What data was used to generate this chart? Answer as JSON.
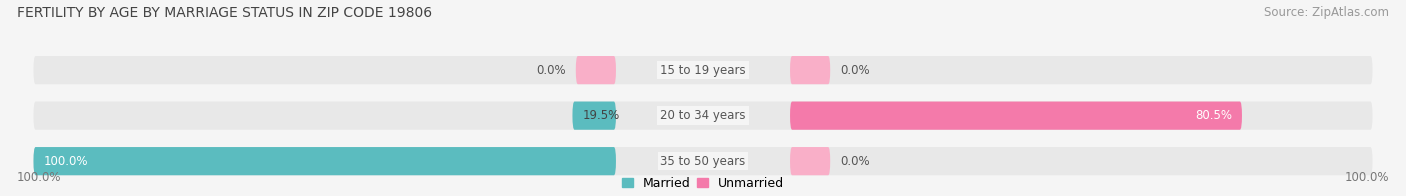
{
  "title": "FERTILITY BY AGE BY MARRIAGE STATUS IN ZIP CODE 19806",
  "source": "Source: ZipAtlas.com",
  "categories": [
    "15 to 19 years",
    "20 to 34 years",
    "35 to 50 years"
  ],
  "married": [
    0.0,
    19.5,
    100.0
  ],
  "unmarried": [
    0.0,
    80.5,
    0.0
  ],
  "married_color": "#5bbcbf",
  "unmarried_color": "#f47aaa",
  "unmarried_small_color": "#f9afc8",
  "bar_bg_color": "#e8e8e8",
  "bar_height": 0.62,
  "title_fontsize": 10,
  "source_fontsize": 8.5,
  "label_fontsize": 8.5,
  "category_fontsize": 8.5,
  "legend_fontsize": 9,
  "axis_label_left": "100.0%",
  "axis_label_right": "100.0%",
  "background_color": "#f5f5f5",
  "bar_bg_light": "#ececec"
}
